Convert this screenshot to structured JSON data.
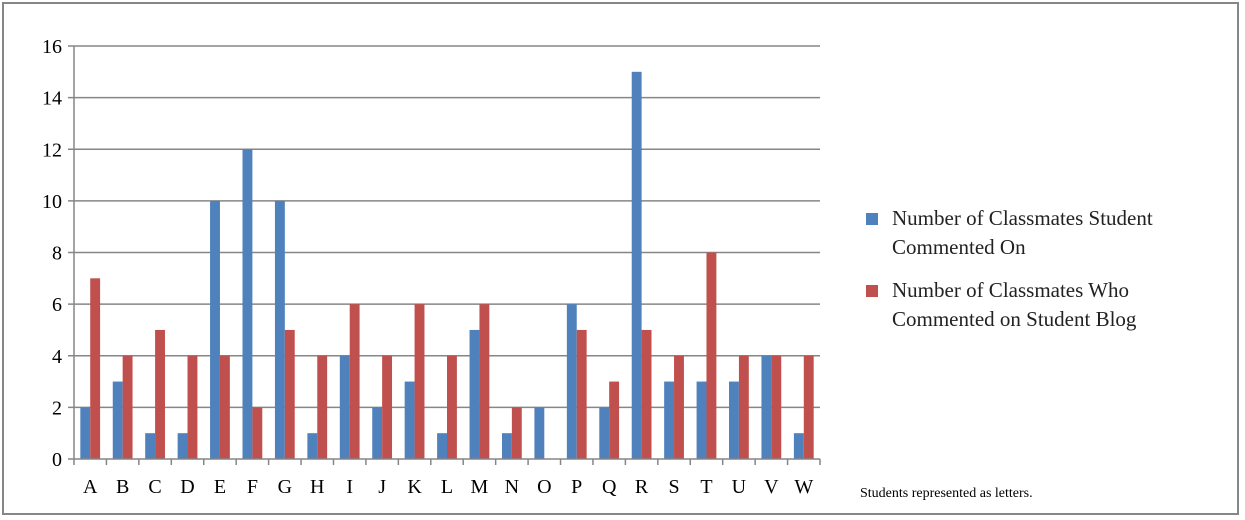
{
  "chart_data": {
    "type": "bar",
    "title": "",
    "xlabel": "",
    "ylabel": "",
    "ylim": [
      0,
      16
    ],
    "yticks": [
      0,
      2,
      4,
      6,
      8,
      10,
      12,
      14,
      16
    ],
    "grid": true,
    "legend_position": "right",
    "categories": [
      "A",
      "B",
      "C",
      "D",
      "E",
      "F",
      "G",
      "H",
      "I",
      "J",
      "K",
      "L",
      "M",
      "N",
      "O",
      "P",
      "Q",
      "R",
      "S",
      "T",
      "U",
      "V",
      "W"
    ],
    "series": [
      {
        "name": "Number of Classmates Student Commented On",
        "color": "#4f81bd",
        "values": [
          2,
          3,
          1,
          1,
          10,
          12,
          10,
          1,
          4,
          2,
          3,
          1,
          5,
          1,
          2,
          6,
          2,
          15,
          3,
          3,
          3,
          4,
          1
        ]
      },
      {
        "name": "Number of Classmates Who Commented on Student Blog",
        "color": "#c0504d",
        "values": [
          7,
          4,
          5,
          4,
          4,
          2,
          5,
          4,
          6,
          4,
          6,
          4,
          6,
          2,
          0,
          5,
          3,
          5,
          4,
          8,
          4,
          4,
          4
        ]
      }
    ],
    "note": "Students represented as letters."
  }
}
